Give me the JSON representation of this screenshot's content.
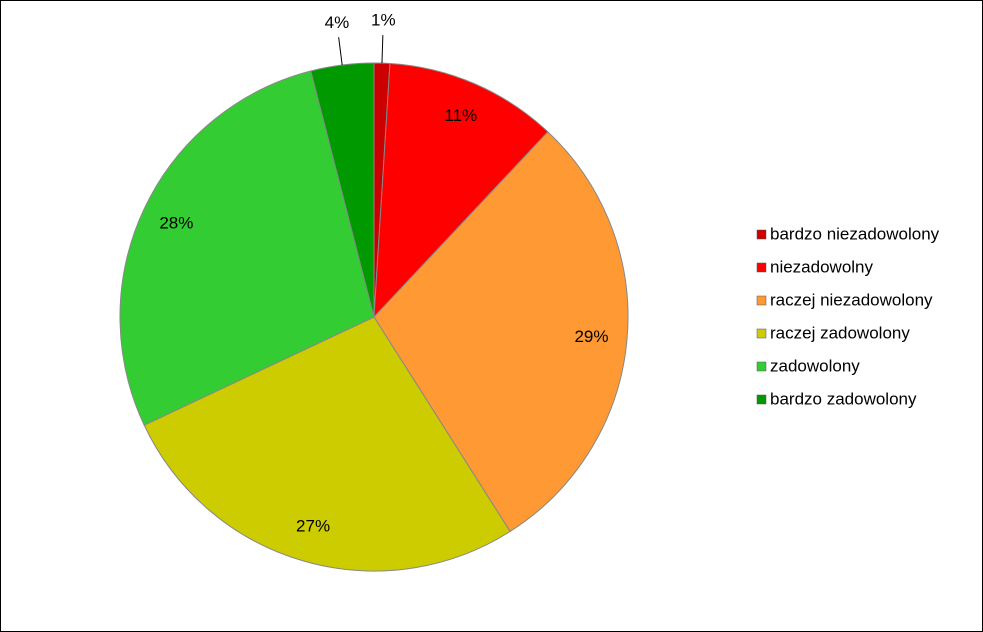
{
  "chart_data": {
    "type": "pie",
    "categories": [
      "bardzo niezadowolony",
      "niezadowolny",
      "raczej niezadowolony",
      "raczej zadowolony",
      "zadowolony",
      "bardzo zadowolony"
    ],
    "values": [
      1,
      11,
      29,
      27,
      28,
      4
    ],
    "value_labels": [
      "1%",
      "11%",
      "29%",
      "27%",
      "28%",
      "4%"
    ],
    "colors": [
      "#cc0000",
      "#ff0000",
      "#ff9933",
      "#cccc00",
      "#33cc33",
      "#009900"
    ],
    "legend": "right"
  }
}
